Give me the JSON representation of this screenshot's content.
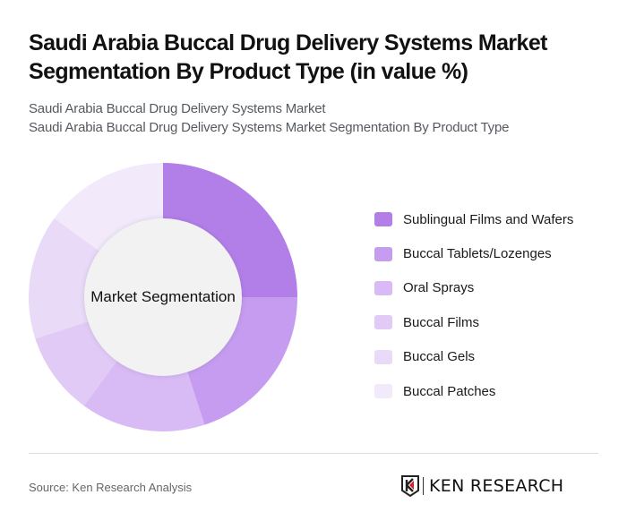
{
  "header": {
    "title": "Saudi Arabia Buccal Drug Delivery Systems Market Segmentation By Product Type (in value %)",
    "subtitle_1": "Saudi Arabia Buccal Drug Delivery Systems Market",
    "subtitle_2": "Saudi Arabia Buccal Drug Delivery Systems Market Segmentation By Product Type"
  },
  "chart": {
    "center_label": "Market Segmentation"
  },
  "legend": [
    {
      "label": "Sublingual Films and Wafers",
      "color": "#b27fe9"
    },
    {
      "label": "Buccal Tablets/Lozenges",
      "color": "#c59cef"
    },
    {
      "label": "Oral Sprays",
      "color": "#d8baf4"
    },
    {
      "label": "Buccal Films",
      "color": "#e1cbf6"
    },
    {
      "label": "Buccal Gels",
      "color": "#e9daf8"
    },
    {
      "label": "Buccal Patches",
      "color": "#f2e9fb"
    }
  ],
  "footer": {
    "source": "Source: Ken Research Analysis",
    "logo_text": "KEN RESEARCH"
  },
  "chart_data": {
    "type": "pie",
    "variant": "donut",
    "title": "Saudi Arabia Buccal Drug Delivery Systems Market Segmentation By Product Type (in value %)",
    "center_label": "Market Segmentation",
    "categories": [
      "Sublingual Films and Wafers",
      "Buccal Tablets/Lozenges",
      "Oral Sprays",
      "Buccal Films",
      "Buccal Gels",
      "Buccal Patches"
    ],
    "values": [
      25,
      20,
      15,
      10,
      15,
      15
    ],
    "colors": [
      "#b27fe9",
      "#c59cef",
      "#d8baf4",
      "#e1cbf6",
      "#e9daf8",
      "#f2e9fb"
    ],
    "start_angle": "12 o'clock, clockwise",
    "legend_position": "right",
    "unit": "%"
  }
}
